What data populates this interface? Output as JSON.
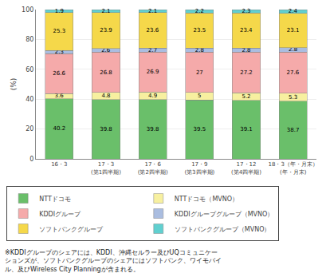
{
  "chart_data": {
    "type": "bar",
    "stacked": true,
    "data_labels": true,
    "grid": true,
    "legend": "bottom",
    "ylabel": "(%)",
    "categories": [
      "16・3",
      "17・3\n(第1四半期)",
      "17・6\n(第2四半期)",
      "17・9\n(第3四半期)",
      "17・12\n(第4四半期)",
      "18・3（年・月末）\n(年・月末)"
    ],
    "series": [
      {
        "name": "NTTドコモ",
        "color": "#6abf6a",
        "values": [
          40.2,
          39.8,
          39.8,
          39.5,
          39.1,
          38.7
        ]
      },
      {
        "name": "NTTドコモ（MVNO）",
        "color": "#f7f0a0",
        "values": [
          3.6,
          4.8,
          4.9,
          5,
          5.2,
          5.3
        ]
      },
      {
        "name": "KDDIグループ",
        "color": "#f5aaaa",
        "values": [
          26.6,
          26.8,
          26.9,
          27.0,
          27.2,
          27.6
        ]
      },
      {
        "name": "KDDIグループグループ（MVNO）",
        "color": "#aabde0",
        "values": [
          2.3,
          2.6,
          2.7,
          2.8,
          2.8,
          2.8
        ]
      },
      {
        "name": "ソフトバンクグループ",
        "color": "#f5d84a",
        "values": [
          25.3,
          23.9,
          23.6,
          23.5,
          23.4,
          23.1
        ]
      },
      {
        "name": "ソフトバンクグループ（MVNO）",
        "color": "#60d0d0",
        "values": [
          1.9,
          2.1,
          2.1,
          2.2,
          2.3,
          2.4
        ]
      }
    ],
    "ylim": [
      0,
      100
    ],
    "yticks": [
      0,
      20,
      40,
      60,
      80,
      100
    ],
    "annotations": [
      "※KDDIグループのシェアには、KDDI、沖縄セルラー及びUQコミュニケー",
      "ションズが、ソフトバンクグループのシェアにはソフトバンク、ワイモバイ",
      "ル、及びWireless City Planningが含まれる。"
    ]
  }
}
